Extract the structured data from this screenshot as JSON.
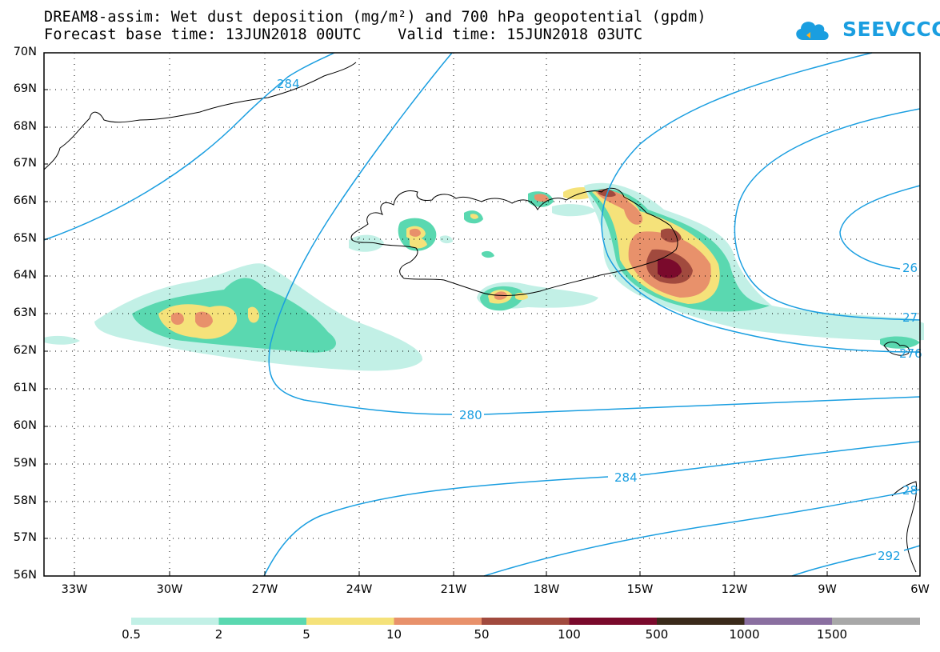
{
  "title": {
    "line1": "DREAM8-assim: Wet dust deposition (mg/m²) and 700 hPa geopotential (gpdm)",
    "line2": "Forecast base time: 13JUN2018 00UTC    Valid time: 15JUN2018 03UTC"
  },
  "logo": {
    "text": "SEEVCCC",
    "icon": "cloud-icon",
    "color": "#1a9ee0"
  },
  "axes": {
    "lat_labels": [
      "70N",
      "69N",
      "68N",
      "67N",
      "66N",
      "65N",
      "64N",
      "63N",
      "62N",
      "61N",
      "60N",
      "59N",
      "58N",
      "57N",
      "56N"
    ],
    "lon_labels": [
      "33W",
      "30W",
      "27W",
      "24W",
      "21W",
      "18W",
      "15W",
      "12W",
      "9W",
      "6W"
    ]
  },
  "contours": {
    "color": "#1a9ee0",
    "labels": [
      "284",
      "280",
      "284",
      "292",
      "26",
      "27",
      "276",
      "28"
    ]
  },
  "colorbar": {
    "labels": [
      "0.5",
      "2",
      "5",
      "10",
      "50",
      "100",
      "500",
      "1000",
      "1500"
    ],
    "colors": [
      "#c2f0e6",
      "#5ad8b0",
      "#f5e27a",
      "#e8916b",
      "#a14a3e",
      "#7a0a2c",
      "#3a2a1a",
      "#8a6fa0",
      "#a8a8a8"
    ]
  }
}
